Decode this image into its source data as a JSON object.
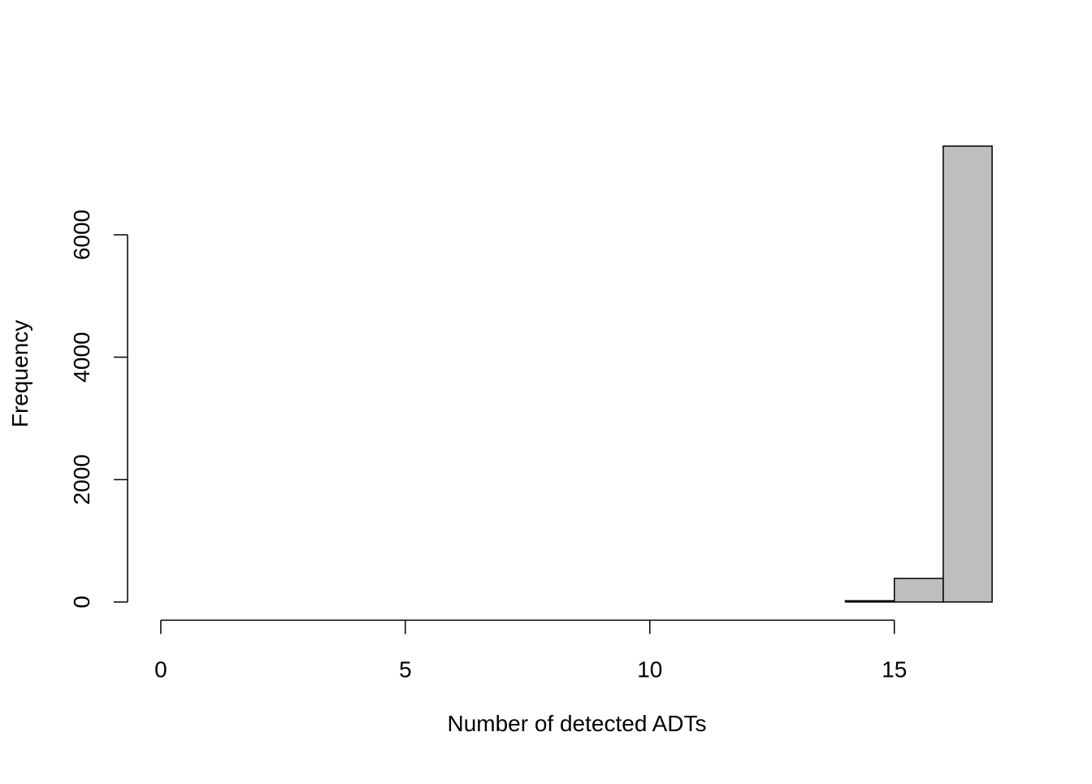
{
  "chart_data": {
    "type": "histogram",
    "xlabel": "Number of detected ADTs",
    "ylabel": "Frequency",
    "bins": [
      0,
      1,
      2,
      3,
      4,
      5,
      6,
      7,
      8,
      9,
      10,
      11,
      12,
      13,
      14,
      15,
      16,
      17
    ],
    "values": [
      0,
      0,
      0,
      0,
      0,
      0,
      0,
      0,
      0,
      0,
      0,
      0,
      0,
      0,
      20,
      385,
      7450
    ],
    "color": "#bebebe",
    "xlim": [
      -0.68,
      17.68
    ],
    "ylim": [
      -298,
      7745
    ],
    "xticks": [
      0,
      5,
      10,
      15
    ],
    "yticks": [
      0,
      2000,
      4000,
      6000
    ]
  }
}
